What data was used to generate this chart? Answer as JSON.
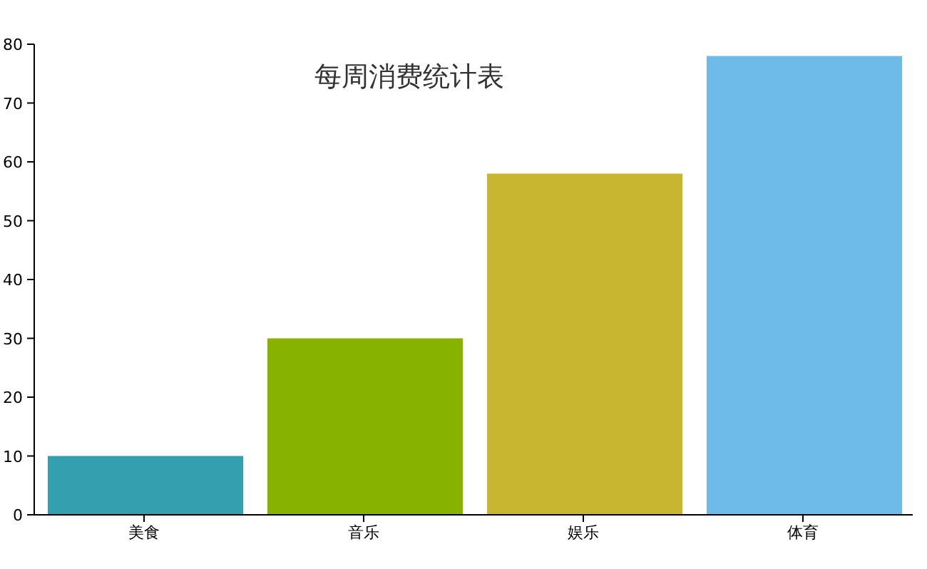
{
  "chart_data": {
    "type": "bar",
    "title": "每周消费统计表",
    "categories": [
      "美食",
      "音乐",
      "娱乐",
      "体育"
    ],
    "values": [
      10,
      30,
      58,
      78
    ],
    "colors": [
      "#339faf",
      "#87b300",
      "#c8b530",
      "#6ebbea"
    ],
    "ylim": [
      0,
      80
    ],
    "yticks": [
      0,
      10,
      20,
      30,
      40,
      50,
      60,
      70,
      80
    ]
  }
}
